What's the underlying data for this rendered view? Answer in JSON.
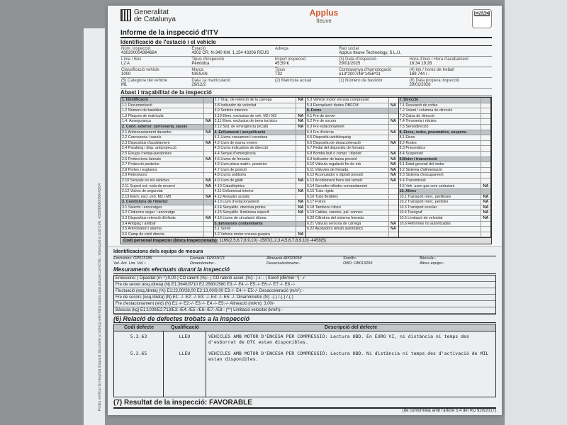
{
  "header": {
    "org_line1": "Generalitat",
    "org_line2": "de Catalunya",
    "brand": "Applus",
    "brand_sub": "Iteuve",
    "cert": "ENAC"
  },
  "title": "Informe de la inspecció d'ITV",
  "ident": {
    "title": "Identificació de l'estació i el vehicle",
    "fields": [
      [
        "Núm. inspecció",
        "430200004394664"
      ],
      [
        "Estació",
        "4302  CR. N-340 KM. 1.154 43206 REUS"
      ],
      [
        "Adreça",
        ""
      ],
      [
        "Raó social",
        "Applus Iteuve Technology, S.L.U."
      ],
      [
        "",
        ""
      ],
      [
        "Línia / Box",
        "L2   A"
      ],
      [
        "Tipus d'inspecció",
        "Periòdica"
      ],
      [
        "Import inspecció",
        "45,59 €"
      ],
      [
        "(3) Data d'inspecció",
        "29/01/2025"
      ],
      [
        "Hora d'inici / Hora d'acabament",
        "18:34   19:28"
      ],
      [
        "Classificació vehicle",
        "1000"
      ],
      [
        "Marca",
        "NISSAN"
      ],
      [
        "Tipus",
        "T32"
      ],
      [
        "Contrasenya d'homologació",
        "e13*2007/46*1456*01"
      ],
      [
        "(4) km / hores de treball",
        "169.744 / -"
      ],
      [
        "(5) Categoria del vehicle",
        "M1"
      ],
      [
        "Data 1a matriculació",
        "29/12/2"
      ],
      [
        "(2) Matrícula actual",
        ""
      ],
      [
        "(1) Número de bastidor",
        ""
      ],
      [
        "(8) Data propera inspecció",
        "29/01/2026"
      ]
    ]
  },
  "trace": {
    "title": "Abast i traçabilitat de la inspecció",
    "columns": [
      [
        [
          "1. Identificació",
          "",
          1
        ],
        [
          "1.1 Documentació",
          ""
        ],
        [
          "1.2 Número de bastidor",
          ""
        ],
        [
          "1.3 Plaques de matrícula",
          ""
        ],
        [
          "1.4. Assegurança",
          "NA"
        ],
        [
          "2. Cond. exterior, carrosseria, xassís",
          "",
          1
        ],
        [
          "2.1 Antiencastament davanter",
          "NA"
        ],
        [
          "2.2 Carrosseria i xassís",
          ""
        ],
        [
          "2.3 Dispositius d'acoblament",
          "NA"
        ],
        [
          "2.4 Parafang i disp. antiprojecció",
          ""
        ],
        [
          "2.5 Eixuga i neteja-parabrises",
          ""
        ],
        [
          "2.6 Proteccions laterals",
          "NA"
        ],
        [
          "2.7 Protecció posterior",
          ""
        ],
        [
          "2.8 Portes i esglaons",
          ""
        ],
        [
          "2.9 Retrovisors",
          ""
        ],
        [
          "2.10 Senyals en els vehicles",
          "NA"
        ],
        [
          "2.11 Suport ext. roda de recanvi",
          "NA"
        ],
        [
          "2.12 Vidres de seguretat",
          ""
        ],
        [
          "2.13 Elem. excl. veh. M2 i M3",
          "NA"
        ],
        [
          "3. Condicions de l'interior",
          "",
          1
        ],
        [
          "3.1 Seients i ancoratges",
          ""
        ],
        [
          "3.2 Cinturons segur. i ancoratge",
          ""
        ],
        [
          "3.3 Dispositius retenció d'infants",
          "NA"
        ],
        [
          "3.4 Antiglaç i antibaf",
          ""
        ],
        [
          "3.5 Antirobatori i alarma",
          ""
        ],
        [
          "3.6 Camp de visió directa",
          ""
        ]
      ],
      [
        [
          "3.7 Disp. de retenció de la càrrega",
          "NA"
        ],
        [
          "3.8 Indicador de velocitat",
          ""
        ],
        [
          "3.9 Sortints interiors",
          ""
        ],
        [
          "3.10 Elem. exclusius de veh. M2 i M3",
          "NA"
        ],
        [
          "3.11 Elem. exclusius de trens turístics",
          "NA"
        ],
        [
          "3.12 Sist. de emergència (eCall)",
          "NA"
        ],
        [
          "4. Enllumenat i senyalització",
          "",
          1
        ],
        [
          "4.1 Llums creuament i carretera",
          ""
        ],
        [
          "4.2 Llum de marxa enrere",
          ""
        ],
        [
          "4.3 Llums indicadors de direcció",
          ""
        ],
        [
          "4.4 Senyal d'emergència",
          ""
        ],
        [
          "4.5 Llums de frenada",
          ""
        ],
        [
          "4.6 Llum placa matríc. posterior",
          ""
        ],
        [
          "4.7 Llum de posició",
          ""
        ],
        [
          "4.8 Llums antiboira",
          ""
        ],
        [
          "4.9 Llum de gàlib",
          "NA"
        ],
        [
          "4.10 Catadiòptrics",
          ""
        ],
        [
          "4.11 Enllumenat interior",
          "NA"
        ],
        [
          "4.12 Avisador acústic",
          ""
        ],
        [
          "4.13 Llum d'estacionament",
          "NA"
        ],
        [
          "4.14 Senyalitz. obertura portes",
          "NA"
        ],
        [
          "4.15 Senyalitz. lluminosa especif.",
          "NA"
        ],
        [
          "4.16 Llums de circulació diürna",
          ""
        ],
        [
          "5. Emissions contaminants",
          "",
          1
        ],
        [
          "5.1 Soroll",
          ""
        ],
        [
          "5.2 Vehicle motor encesa guspira",
          "NA"
        ]
      ],
      [
        [
          "5.3 Vehicle motor encesa compressió",
          ""
        ],
        [
          "5.4 Recopilació dades OBFCM",
          "NA"
        ],
        [
          "6. Frens",
          "",
          1
        ],
        [
          "6.1 Fre de servei",
          ""
        ],
        [
          "6.2 Fre de socors",
          "NA"
        ],
        [
          "6.3 Fre estacionament",
          ""
        ],
        [
          "6.4 Fre d'inèrcia",
          "NA"
        ],
        [
          "6.5 Dispositiu antibloqueig",
          ""
        ],
        [
          "6.6 Dispositiu de desacceleració",
          "NA"
        ],
        [
          "6.7 Pedal del dispositiu de frenada",
          ""
        ],
        [
          "6.8 Bomba buit o compr. i dipòsit",
          "NA"
        ],
        [
          "6.9 Indicador de baixa pressió",
          "NA"
        ],
        [
          "6.10 Vàlvula regulació fre de mà",
          "NA"
        ],
        [
          "6.11 Vàlvules de frenada",
          "NA"
        ],
        [
          "6.12 Acumulador o dipòsit pressió",
          "NA"
        ],
        [
          "6.13 Acoblament frens del remolc",
          "NA"
        ],
        [
          "6.14 Servofre cilindre comandament",
          ""
        ],
        [
          "6.15 Tubs rígids",
          ""
        ],
        [
          "6.16 Tubs flexibles",
          ""
        ],
        [
          "6.17 Folres",
          ""
        ],
        [
          "6.18 Tambors i discs",
          ""
        ],
        [
          "6.19 Cables, varetes, pal. connex.",
          ""
        ],
        [
          "6.20 Cilindres del sistema frenada",
          ""
        ],
        [
          "6.21 Vàlvula sensora de càrrega",
          "NA"
        ],
        [
          "6.22 Ajustadors tensió automàtics",
          "NA"
        ],
        [
          "",
          ""
        ]
      ],
      [
        [
          "7. Direcció",
          "",
          1
        ],
        [
          "7.1 Desviació de rodes",
          ""
        ],
        [
          "7.2 Volant i columna de direcció",
          ""
        ],
        [
          "7.3 Caixa de direcció",
          ""
        ],
        [
          "7.4 Timoneria i ròtules",
          ""
        ],
        [
          "7.5 Servodirecció",
          ""
        ],
        [
          "8. Eixos, rodes, pneumàtics, suspens.",
          "",
          1
        ],
        [
          "8.1 Eixos",
          ""
        ],
        [
          "8.2 Rodes",
          ""
        ],
        [
          "8.3 Pneumàtics",
          ""
        ],
        [
          "8.4 Suspensió",
          ""
        ],
        [
          "9.Motor i transmissió",
          "",
          1
        ],
        [
          "9.1 Estat general del motor",
          ""
        ],
        [
          "9.2 Sistema d'alimentació",
          ""
        ],
        [
          "9.3 Sistema d'escapament",
          ""
        ],
        [
          "9.4 Transmissió",
          ""
        ],
        [
          "9.5 Veh. usen gas com carburant",
          "NA"
        ],
        [
          "10. Altres",
          "",
          1
        ],
        [
          "10.1 Transport merc. perilloses",
          "NA"
        ],
        [
          "10.2 Transport merc. peribles",
          "NA"
        ],
        [
          "10.3 Transport escolar",
          "NA"
        ],
        [
          "10.4 Tacògraf",
          "NA"
        ],
        [
          "10.5 Limitació de velocitat",
          "NA"
        ],
        [
          "10.6 Reformes no autoritzades",
          ""
        ],
        [
          "",
          ""
        ],
        [
          "",
          ""
        ]
      ]
    ],
    "codi_label": "Codi personal inspector (blocs inspeccionats)",
    "codi_value": "1169(2,5,6,7,8,9,10) -1587(1,2,3,4,5,6,7,8,9,10) -4458(5)"
  },
  "equip": {
    "title": "Identificacions dels equips de mesura",
    "items": [
      "Emissions: OP013186",
      "Frenada: FR033071",
      "Alineació:AP023058",
      "Sorolls:-",
      "Bàscula:-",
      "Vel. Act. Lim. Vel.:-",
      "Dinamòmetre:-",
      "Desacceleròmetre:-",
      "OBD: OB013209",
      "Altres equips:-"
    ]
  },
  "meas": {
    "title": "Mesuraments efectuats durant la inspecció",
    "rows": [
      "Emissions:  |  Opacitat (m⁻¹):0,00  |  CO ralentí (%):-  |  CO ralentí accel. (%):-  |  λ: -  |  Soroll (dB/min⁻¹): -/-",
      "Fre de servei (esq./dreta) (N)  E1:3640/3710 E2:2580/2580 E3:-/- E4:-/- E5:-/- E6:-/- E7:-/- E8:-/-",
      "Fluctuació (esq./dreta) (%)  E1:22,00/28,00 E2:13,00/9,00 E3:-/- E4:-/- E5:-/-     Desacceleració (m/s²): -",
      "Fre de socors (esq./dreta) (N)  E1: -/- E2: -/- E3: -/- E4: -/- E5: -/-     Dinamòmetre (N): -(-) /-(-) /-(-)",
      "Fre d'estacionament (e/d) (N)  E1:-/- E2:-/- E3:-/- E4:-/- E5:-/-     Alineació (m/km): 3,00/-",
      "Bàscula (kg)  E1:1000/E2:713/E3:-/E4:-/E5:-/E6:-/E7:-/E8:- (**)     Limitació velocitat (km/h):-"
    ],
    "frenada_label": "Frenada"
  },
  "defects": {
    "title": "(6) Relació de defectes trobats a la inspecció",
    "headers": [
      "Codi defecte",
      "Qualificació",
      "Descripció del defecte"
    ],
    "rows": [
      [
        "5.3.63",
        "LLEU",
        "VEHICLES AMB MOTOR D'ENCESA PER COMPRESSIÓ: Lectura OBD. En EURO VI, ni distància ni temps des d'esborrat de DTC estan disponibles."
      ],
      [
        "5.3.65",
        "LLEU",
        "VEHICLES AMB MOTOR D'ENCESA PER COMPRESSIÓ: Lectura OBD. Ni distància ni temps des d'activació de MIL estan disponibles."
      ]
    ]
  },
  "result": "(7) Resultat de la inspecció: FAVORABLE",
  "side_text": "Podeu verificar la integritat d'aquest document a l'adreça web https://apps.applusiteuve.com/CVE, mitjançant el codi CVE: 4322N0360050043(04",
  "conformity": "(de conformitat amb l'article 5.4 del RD 920/2017)"
}
